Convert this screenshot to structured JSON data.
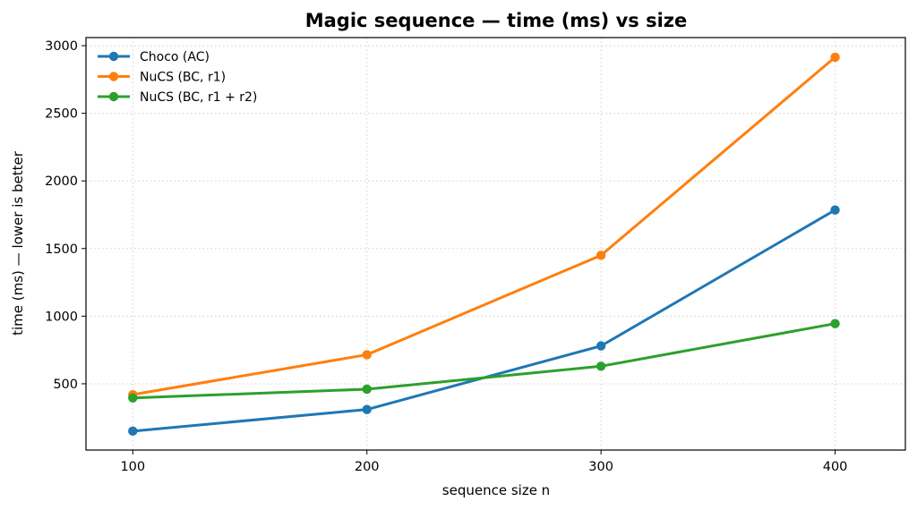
{
  "chart_data": {
    "type": "line",
    "title": "Magic sequence — time (ms) vs size",
    "xlabel": "sequence size n",
    "ylabel": "time (ms) — lower is better",
    "x": [
      100,
      200,
      300,
      400
    ],
    "x_ticks": [
      100,
      200,
      300,
      400
    ],
    "y_ticks": [
      500,
      1000,
      1500,
      2000,
      2500,
      3000
    ],
    "xlim": [
      80,
      430
    ],
    "ylim": [
      10,
      3060
    ],
    "grid": true,
    "legend_position": "top-left",
    "series": [
      {
        "name": "Choco (AC)",
        "color": "#1f77b4",
        "values": [
          150,
          310,
          780,
          1785
        ]
      },
      {
        "name": "NuCS (BC, r1)",
        "color": "#ff7f0e",
        "values": [
          420,
          715,
          1450,
          2915
        ]
      },
      {
        "name": "NuCS (BC, r1 + r2)",
        "color": "#2ca02c",
        "values": [
          395,
          460,
          630,
          945
        ]
      }
    ]
  }
}
